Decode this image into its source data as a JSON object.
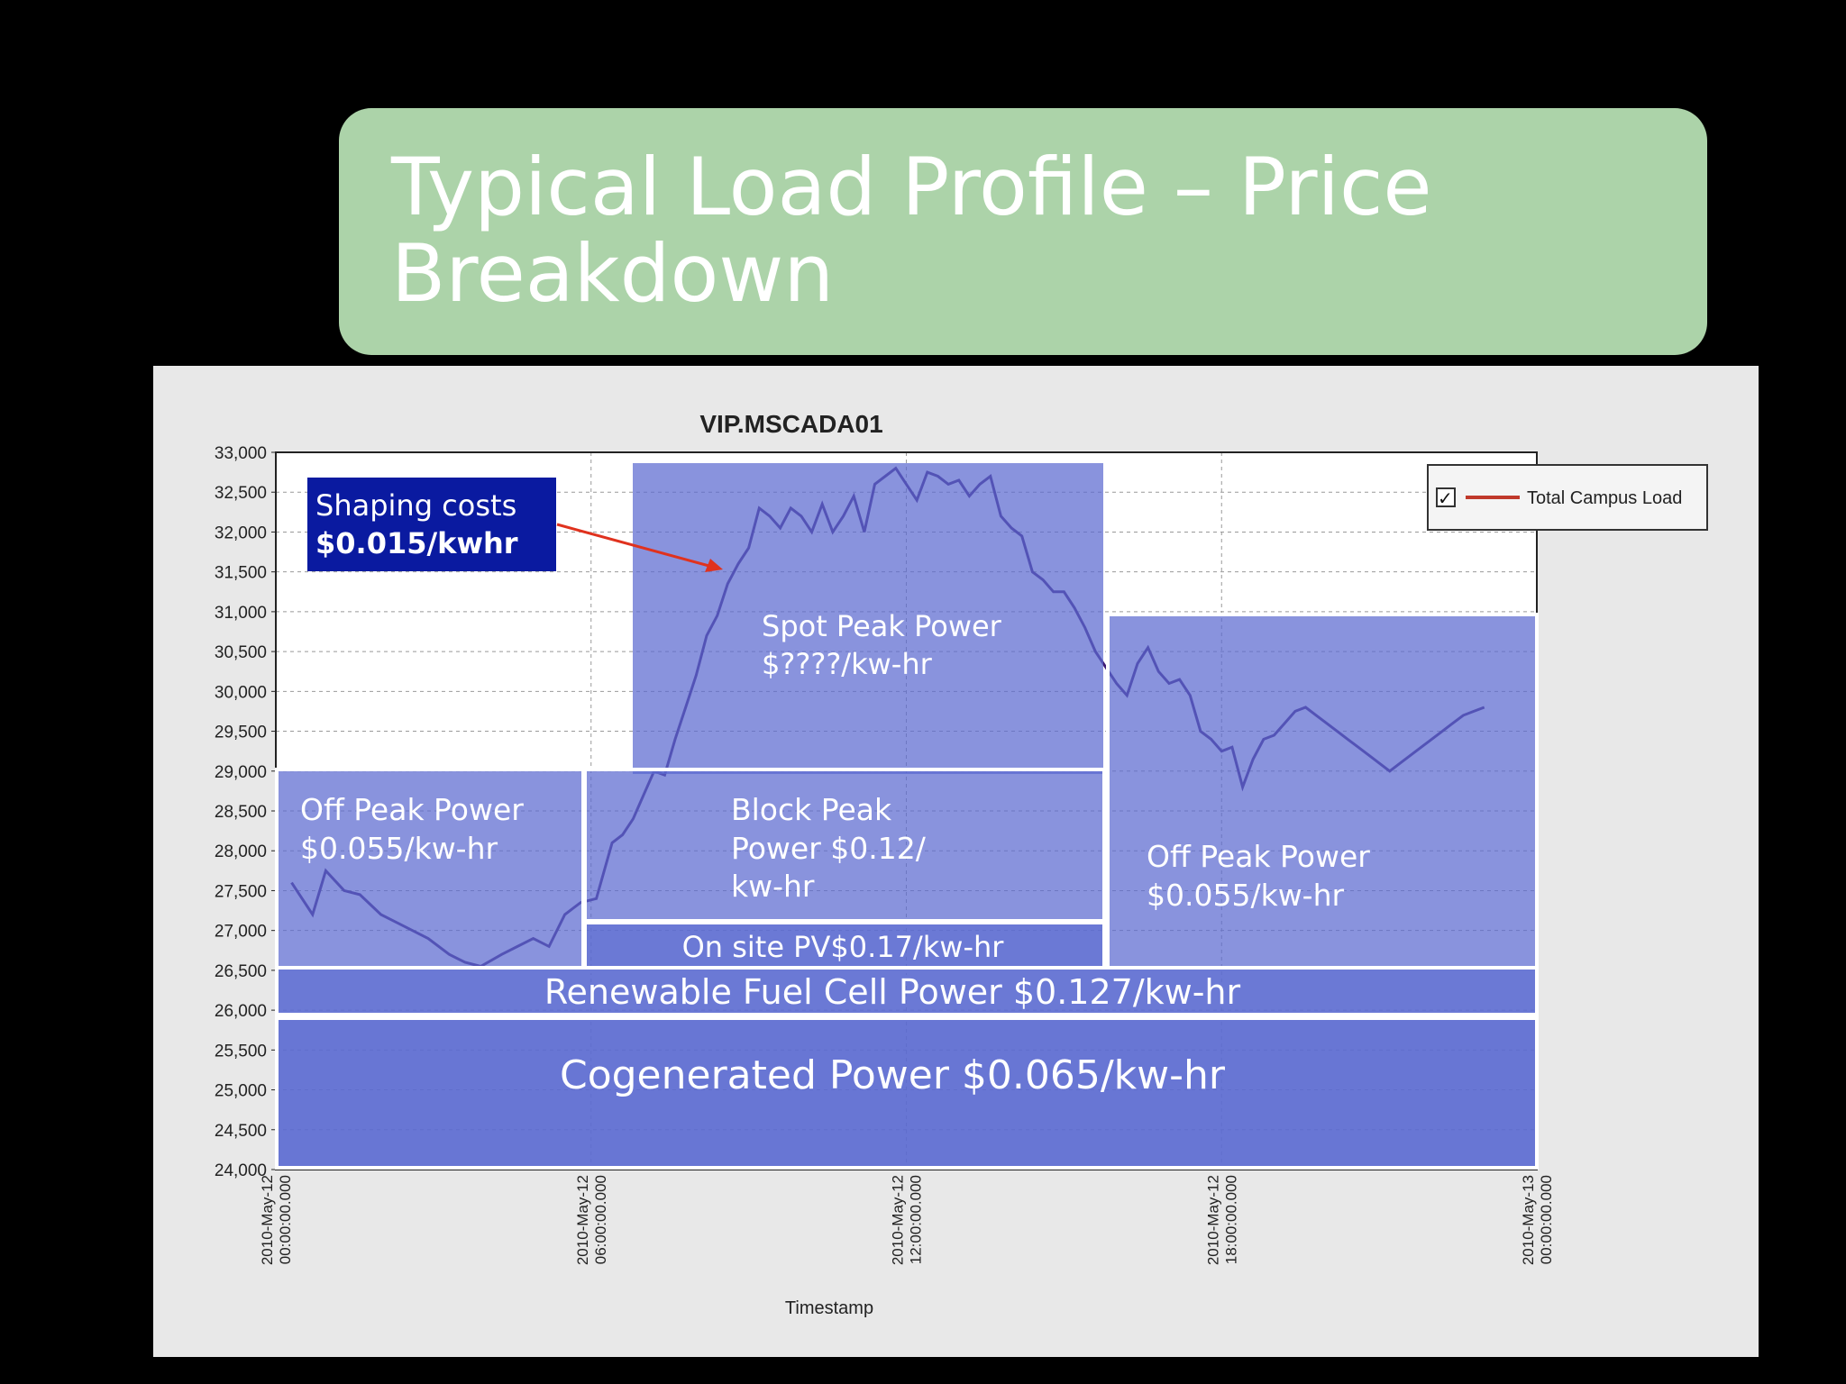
{
  "slide": {
    "title": "Typical Load Profile – Price\nBreakdown"
  },
  "colors": {
    "background": "#000000",
    "title_box": "#acd3a9",
    "figure_bg": "#e8e8e8",
    "series_line": "#3d1a73",
    "legend_line": "#c0392b",
    "overlay_fill": "#5b6ad0",
    "shaping_box": "#0a1aa0",
    "arrow": "#e0321e"
  },
  "chart_data": {
    "type": "line",
    "title": "VIP.MSCADA01",
    "xlabel": "Timestamp",
    "ylabel": "",
    "ylim": [
      24000,
      33000
    ],
    "yticks": [
      24000,
      24500,
      25000,
      25500,
      26000,
      26500,
      27000,
      27500,
      28000,
      28500,
      29000,
      29500,
      30000,
      30500,
      31000,
      31500,
      32000,
      32500,
      33000
    ],
    "ytick_labels": [
      "24,000",
      "24,500",
      "25,000",
      "25,500",
      "26,000",
      "26,500",
      "27,000",
      "27,500",
      "28,000",
      "28,500",
      "29,000",
      "29,500",
      "30,000",
      "30,500",
      "31,000",
      "31,500",
      "32,000",
      "32,500",
      "33,000"
    ],
    "xlim": [
      0,
      24
    ],
    "xticks": [
      {
        "x": 0,
        "line1": "2010-May-12",
        "line2": "00:00:00.000"
      },
      {
        "x": 6,
        "line1": "2010-May-12",
        "line2": "06:00:00.000"
      },
      {
        "x": 12,
        "line1": "2010-May-12",
        "line2": "12:00:00.000"
      },
      {
        "x": 18,
        "line1": "2010-May-12",
        "line2": "18:00:00.000"
      },
      {
        "x": 24,
        "line1": "2010-May-13",
        "line2": "00:00:00.000"
      }
    ],
    "grid": true,
    "legend": {
      "placement": "right",
      "checked": true
    },
    "series": [
      {
        "name": "Total Campus Load",
        "x": [
          0.3,
          0.7,
          0.95,
          1.3,
          1.6,
          2.0,
          2.3,
          2.6,
          2.9,
          3.3,
          3.6,
          3.9,
          4.3,
          4.6,
          4.9,
          5.2,
          5.5,
          5.8,
          6.1,
          6.4,
          6.6,
          6.8,
          7.0,
          7.2,
          7.4,
          7.6,
          7.8,
          8.0,
          8.2,
          8.4,
          8.6,
          8.8,
          9.0,
          9.2,
          9.4,
          9.6,
          9.8,
          10.0,
          10.2,
          10.4,
          10.6,
          10.8,
          11.0,
          11.2,
          11.4,
          11.6,
          11.8,
          12.0,
          12.2,
          12.4,
          12.6,
          12.8,
          13.0,
          13.2,
          13.4,
          13.6,
          13.8,
          14.0,
          14.2,
          14.4,
          14.6,
          14.8,
          15.0,
          15.2,
          15.4,
          15.6,
          15.8,
          16.0,
          16.2,
          16.4,
          16.6,
          16.8,
          17.0,
          17.2,
          17.4,
          17.6,
          17.8,
          18.0,
          18.2,
          18.4,
          18.6,
          18.8,
          19.0,
          19.2,
          19.4,
          19.6,
          19.8,
          20.0,
          20.2,
          20.4,
          20.6,
          20.8,
          21.0,
          21.2,
          21.4,
          21.6,
          21.8,
          22.0,
          22.2,
          22.4,
          22.6,
          22.8,
          23.0
        ],
        "y": [
          27600,
          27200,
          27750,
          27500,
          27450,
          27200,
          27100,
          27000,
          26900,
          26700,
          26600,
          26550,
          26700,
          26800,
          26900,
          26800,
          27200,
          27350,
          27400,
          28100,
          28200,
          28400,
          28700,
          29000,
          28950,
          29400,
          29800,
          30200,
          30700,
          30950,
          31350,
          31600,
          31800,
          32300,
          32200,
          32050,
          32300,
          32200,
          32000,
          32350,
          32000,
          32200,
          32450,
          32000,
          32600,
          32700,
          32800,
          32600,
          32400,
          32750,
          32700,
          32600,
          32650,
          32450,
          32600,
          32700,
          32200,
          32050,
          31950,
          31500,
          31400,
          31250,
          31250,
          31050,
          30800,
          30500,
          30300,
          30100,
          29950,
          30350,
          30550,
          30250,
          30100,
          30150,
          29950,
          29500,
          29400,
          29250,
          29300,
          28800,
          29150,
          29400,
          29450,
          29600,
          29750,
          29800,
          29700,
          29600,
          29500,
          29400,
          29300,
          29200,
          29100,
          29000,
          29100,
          29200,
          29300,
          29400,
          29500,
          29600,
          29700,
          29750,
          29800
        ]
      }
    ]
  },
  "overlays": {
    "shaping": {
      "line1": "Shaping costs",
      "line2": "$0.015/kwhr"
    },
    "spot_peak": {
      "line1": "Spot Peak Power",
      "line2": "$????/kw-hr"
    },
    "off_peak_left": {
      "line1": "Off Peak Power",
      "line2": "$0.055/kw-hr"
    },
    "block_peak": {
      "line1": "Block Peak",
      "line2": "Power $0.12/",
      "line3": "kw-hr"
    },
    "off_peak_right": {
      "line1": "Off Peak Power",
      "line2": "$0.055/kw-hr"
    },
    "onsite_pv": {
      "label": "On site PV$0.17/kw-hr"
    },
    "fuel_cell": {
      "label": "Renewable Fuel Cell Power $0.127/kw-hr"
    },
    "cogenerated": {
      "label": "Cogenerated Power $0.065/kw-hr"
    }
  }
}
